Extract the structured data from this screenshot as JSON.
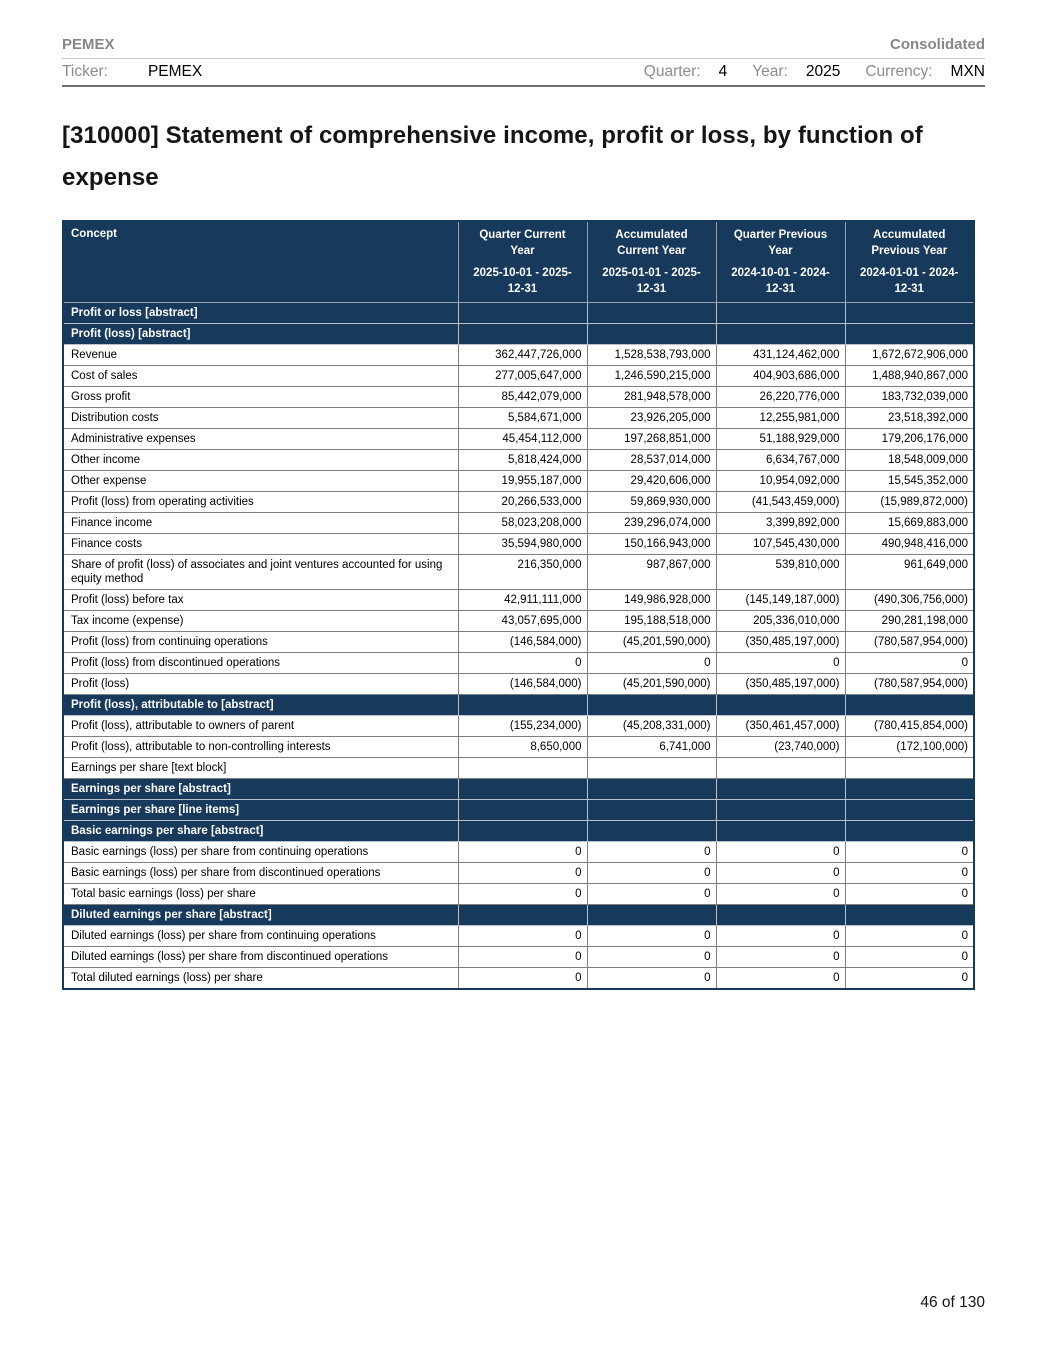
{
  "header": {
    "company": "PEMEX",
    "report_scope": "Consolidated",
    "ticker_label": "Ticker:",
    "ticker_value": "PEMEX",
    "quarter_label": "Quarter:",
    "quarter_value": "4",
    "year_label": "Year:",
    "year_value": "2025",
    "currency_label": "Currency:",
    "currency_value": "MXN"
  },
  "title": "[310000] Statement of comprehensive income, profit or loss, by function of expense",
  "footer": {
    "page_number": "46 of 130"
  },
  "colors": {
    "header_navy": "#17395c",
    "label_gray": "#8c8c8c",
    "border_gray": "#7f7f7f"
  },
  "table": {
    "columns": [
      {
        "title": "Concept",
        "subtitle": ""
      },
      {
        "title": "Quarter Current Year",
        "subtitle": "2025-10-01 - 2025-12-31"
      },
      {
        "title": "Accumulated Current Year",
        "subtitle": "2025-01-01 - 2025-12-31"
      },
      {
        "title": "Quarter Previous Year",
        "subtitle": "2024-10-01 - 2024-12-31"
      },
      {
        "title": "Accumulated Previous Year",
        "subtitle": "2024-01-01 - 2024-12-31"
      }
    ],
    "rows": [
      {
        "type": "section",
        "label": "Profit or loss [abstract]",
        "values": [
          "",
          "",
          "",
          ""
        ]
      },
      {
        "type": "section",
        "label": "Profit (loss) [abstract]",
        "values": [
          "",
          "",
          "",
          ""
        ]
      },
      {
        "type": "data",
        "label": "Revenue",
        "values": [
          "362,447,726,000",
          "1,528,538,793,000",
          "431,124,462,000",
          "1,672,672,906,000"
        ]
      },
      {
        "type": "data",
        "label": "Cost of sales",
        "values": [
          "277,005,647,000",
          "1,246,590,215,000",
          "404,903,686,000",
          "1,488,940,867,000"
        ]
      },
      {
        "type": "data",
        "label": "Gross profit",
        "values": [
          "85,442,079,000",
          "281,948,578,000",
          "26,220,776,000",
          "183,732,039,000"
        ]
      },
      {
        "type": "data",
        "label": "Distribution costs",
        "values": [
          "5,584,671,000",
          "23,926,205,000",
          "12,255,981,000",
          "23,518,392,000"
        ]
      },
      {
        "type": "data",
        "label": "Administrative expenses",
        "values": [
          "45,454,112,000",
          "197,268,851,000",
          "51,188,929,000",
          "179,206,176,000"
        ]
      },
      {
        "type": "data",
        "label": "Other income",
        "values": [
          "5,818,424,000",
          "28,537,014,000",
          "6,634,767,000",
          "18,548,009,000"
        ]
      },
      {
        "type": "data",
        "label": "Other expense",
        "values": [
          "19,955,187,000",
          "29,420,606,000",
          "10,954,092,000",
          "15,545,352,000"
        ]
      },
      {
        "type": "data",
        "label": "Profit (loss) from operating activities",
        "values": [
          "20,266,533,000",
          "59,869,930,000",
          "(41,543,459,000)",
          "(15,989,872,000)"
        ]
      },
      {
        "type": "data",
        "label": "Finance income",
        "values": [
          "58,023,208,000",
          "239,296,074,000",
          "3,399,892,000",
          "15,669,883,000"
        ]
      },
      {
        "type": "data",
        "label": "Finance costs",
        "values": [
          "35,594,980,000",
          "150,166,943,000",
          "107,545,430,000",
          "490,948,416,000"
        ]
      },
      {
        "type": "data",
        "label": "Share of profit (loss) of associates and joint ventures accounted for using equity method",
        "values": [
          "216,350,000",
          "987,867,000",
          "539,810,000",
          "961,649,000"
        ]
      },
      {
        "type": "data",
        "label": "Profit (loss) before tax",
        "values": [
          "42,911,111,000",
          "149,986,928,000",
          "(145,149,187,000)",
          "(490,306,756,000)"
        ]
      },
      {
        "type": "data",
        "label": "Tax income (expense)",
        "values": [
          "43,057,695,000",
          "195,188,518,000",
          "205,336,010,000",
          "290,281,198,000"
        ]
      },
      {
        "type": "data",
        "label": "Profit (loss) from continuing operations",
        "values": [
          "(146,584,000)",
          "(45,201,590,000)",
          "(350,485,197,000)",
          "(780,587,954,000)"
        ]
      },
      {
        "type": "data",
        "label": "Profit (loss) from discontinued operations",
        "values": [
          "0",
          "0",
          "0",
          "0"
        ]
      },
      {
        "type": "data",
        "label": "Profit (loss)",
        "values": [
          "(146,584,000)",
          "(45,201,590,000)",
          "(350,485,197,000)",
          "(780,587,954,000)"
        ]
      },
      {
        "type": "section",
        "label": "Profit (loss), attributable to [abstract]",
        "values": [
          "",
          "",
          "",
          ""
        ]
      },
      {
        "type": "data",
        "label": "Profit (loss), attributable to owners of parent",
        "values": [
          "(155,234,000)",
          "(45,208,331,000)",
          "(350,461,457,000)",
          "(780,415,854,000)"
        ]
      },
      {
        "type": "data",
        "label": "Profit (loss), attributable to non-controlling interests",
        "values": [
          "8,650,000",
          "6,741,000",
          "(23,740,000)",
          "(172,100,000)"
        ]
      },
      {
        "type": "data",
        "label": "Earnings per share [text block]",
        "values": [
          "",
          "",
          "",
          ""
        ]
      },
      {
        "type": "section",
        "label": "Earnings per share [abstract]",
        "values": [
          "",
          "",
          "",
          ""
        ]
      },
      {
        "type": "section",
        "label": "Earnings per share [line items]",
        "values": [
          "",
          "",
          "",
          ""
        ]
      },
      {
        "type": "section",
        "label": "Basic earnings per share [abstract]",
        "values": [
          "",
          "",
          "",
          ""
        ]
      },
      {
        "type": "data",
        "label": "Basic earnings (loss) per share from continuing operations",
        "values": [
          "0",
          "0",
          "0",
          "0"
        ]
      },
      {
        "type": "data",
        "label": "Basic earnings (loss) per share from discontinued operations",
        "values": [
          "0",
          "0",
          "0",
          "0"
        ]
      },
      {
        "type": "data",
        "label": "Total basic earnings (loss) per share",
        "values": [
          "0",
          "0",
          "0",
          "0"
        ]
      },
      {
        "type": "section",
        "label": "Diluted earnings per share [abstract]",
        "values": [
          "",
          "",
          "",
          ""
        ]
      },
      {
        "type": "data",
        "label": "Diluted earnings (loss) per share from continuing operations",
        "values": [
          "0",
          "0",
          "0",
          "0"
        ]
      },
      {
        "type": "data",
        "label": "Diluted earnings (loss) per share from discontinued operations",
        "values": [
          "0",
          "0",
          "0",
          "0"
        ]
      },
      {
        "type": "data",
        "label": "Total diluted earnings (loss) per share",
        "values": [
          "0",
          "0",
          "0",
          "0"
        ]
      }
    ]
  }
}
